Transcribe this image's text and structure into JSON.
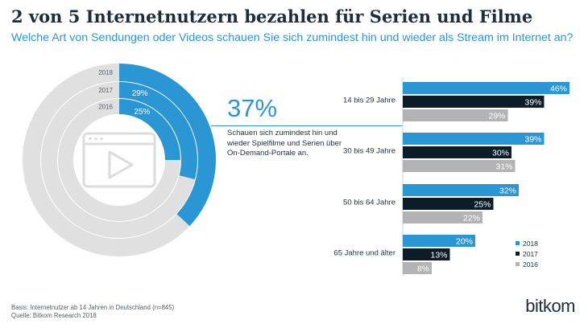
{
  "title": "2 von 5 Internetnutzern bezahlen für Serien und Filme",
  "subtitle": "Welche Art von Sendungen oder Videos schauen Sie sich zumindest hin und wieder als Stream im Internet an?",
  "highlight": {
    "value": "37%",
    "text": "Schauen sich zumindest hin und wieder Spielfilme und Serien über On-Demand-Portale an."
  },
  "footer": {
    "basis": "Basis: Internetnutzer ab 14 Jahren in Deutschland (n=845)",
    "source": "Quelle: Bitkom Research 2018"
  },
  "brand": "bitkom",
  "colors": {
    "blue": "#2b96d4",
    "navy": "#0e1c27",
    "gray": "#b3b3b3",
    "ring_gray": "#e0e0e0",
    "text": "#1e2d3c"
  },
  "chart_data": [
    {
      "type": "donut",
      "series": [
        {
          "name": "2018",
          "value": 37
        },
        {
          "name": "2017",
          "value": 29
        },
        {
          "name": "2016",
          "value": 25
        }
      ],
      "labels": {
        "2018": "",
        "2017": "29%",
        "2016": "25%"
      },
      "max": 100,
      "icon": "video-play-icon"
    },
    {
      "type": "bar",
      "orientation": "horizontal",
      "categories": [
        "14 bis 29 Jahre",
        "30  bis 49 Jahre",
        "50 bis 64 Jahre",
        "65 Jahre und älter"
      ],
      "series": [
        {
          "name": "2018",
          "values": [
            46,
            39,
            32,
            20
          ]
        },
        {
          "name": "2017",
          "values": [
            39,
            30,
            25,
            13
          ]
        },
        {
          "name": "2016",
          "values": [
            29,
            31,
            22,
            8
          ]
        }
      ],
      "value_suffix": "%",
      "legend": {
        "position": "bottom-right"
      }
    }
  ]
}
